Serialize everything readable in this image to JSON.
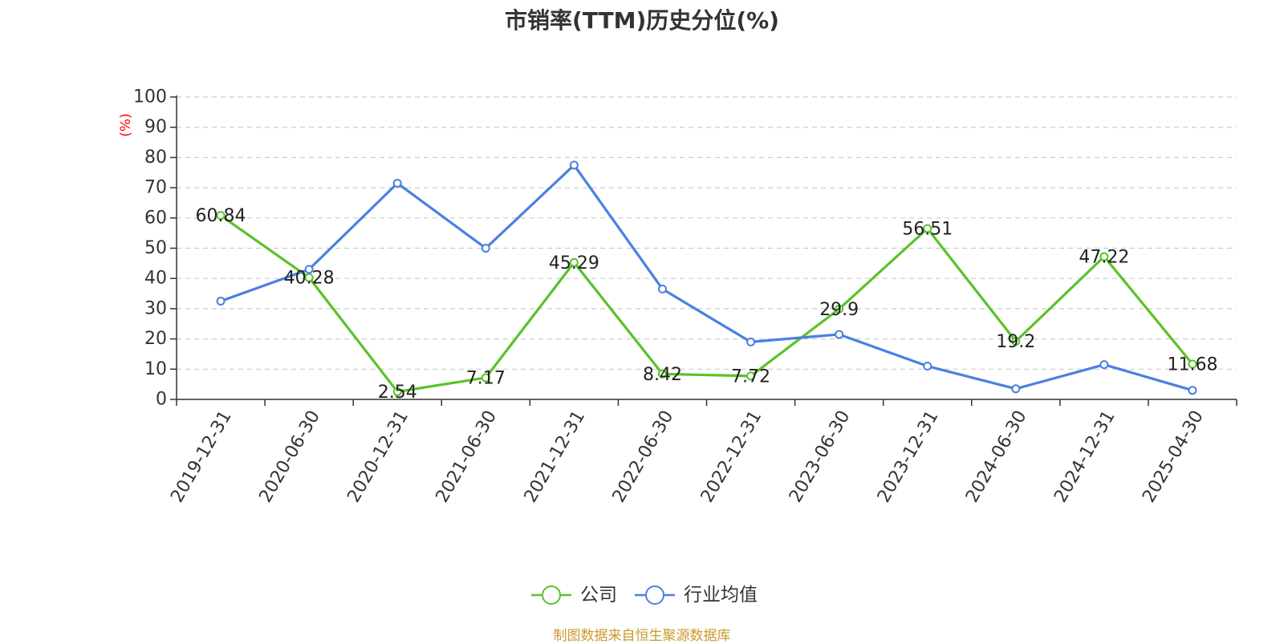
{
  "chart_data": {
    "type": "line",
    "title": "市销率(TTM)历史分位(%)",
    "ylabel": "(%)",
    "xlabel": "",
    "ylim": [
      0,
      100
    ],
    "yticks": [
      0,
      10,
      20,
      30,
      40,
      50,
      60,
      70,
      80,
      90,
      100
    ],
    "grid": true,
    "legend_position": "bottom",
    "categories": [
      "2019-12-31",
      "2020-06-30",
      "2020-12-31",
      "2021-06-30",
      "2021-12-31",
      "2022-06-30",
      "2022-12-31",
      "2023-06-30",
      "2023-12-31",
      "2024-06-30",
      "2024-12-31",
      "2025-04-30"
    ],
    "series": [
      {
        "name": "公司",
        "color": "#5ac229",
        "show_labels": true,
        "values": [
          60.84,
          40.28,
          2.54,
          7.17,
          45.29,
          8.42,
          7.72,
          29.9,
          56.51,
          19.2,
          47.22,
          11.68
        ],
        "labels": [
          "60.84",
          "40.28",
          "2.54",
          "7.17",
          "45.29",
          "8.42",
          "7.72",
          "29.9",
          "56.51",
          "19.2",
          "47.22",
          "11.68"
        ]
      },
      {
        "name": "行业均值",
        "color": "#4a80e0",
        "show_labels": false,
        "values": [
          32.5,
          43,
          71.5,
          50,
          77.5,
          36.5,
          19,
          21.5,
          11,
          3.5,
          11.5,
          3
        ]
      }
    ]
  },
  "source": {
    "text": "制图数据来自恒生聚源数据库",
    "color": "#c89a2e"
  },
  "ylabel_color": "#ff0000"
}
